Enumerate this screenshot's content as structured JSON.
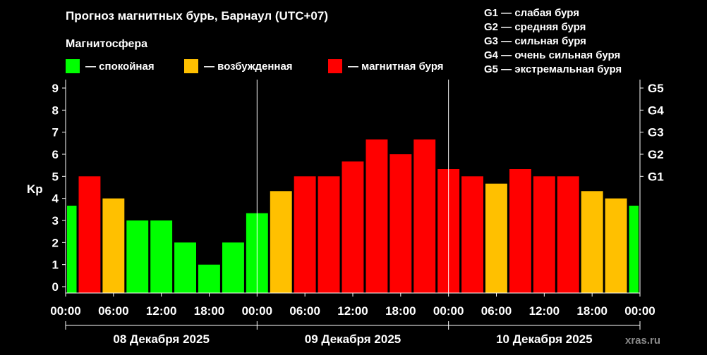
{
  "title": "Прогноз магнитных бурь, Барнаул (UTC+07)",
  "legend": {
    "heading": "Магнитосфера",
    "items": [
      {
        "label": "— спокойная",
        "color": "#00ff00"
      },
      {
        "label": "— возбужденная",
        "color": "#ffc000"
      },
      {
        "label": "— магнитная буря",
        "color": "#ff0000"
      }
    ]
  },
  "storm_scale": [
    "G1 — слабая буря",
    "G2 — средняя буря",
    "G3 — сильная буря",
    "G4 — очень сильная буря",
    "G5 — экстремальная буря"
  ],
  "watermark": "xras.ru",
  "chart_data": {
    "type": "bar",
    "ylabel": "Kp",
    "ylim": [
      0,
      9
    ],
    "yticks": [
      "0",
      "1",
      "2",
      "3",
      "4",
      "5",
      "6",
      "7",
      "8",
      "9"
    ],
    "right_ticks": [
      {
        "label": "G1",
        "kp": 5
      },
      {
        "label": "G2",
        "kp": 6
      },
      {
        "label": "G3",
        "kp": 7
      },
      {
        "label": "G4",
        "kp": 8
      },
      {
        "label": "G5",
        "kp": 9
      }
    ],
    "xticks": [
      "00:00",
      "06:00",
      "12:00",
      "18:00",
      "00:00",
      "06:00",
      "12:00",
      "18:00",
      "00:00",
      "06:00",
      "12:00",
      "18:00",
      "00:00"
    ],
    "days": [
      "08 Декабря 2025",
      "09 Декабря 2025",
      "10 Декабря 2025"
    ],
    "grid": false,
    "values": [
      3.67,
      5,
      4,
      3,
      3,
      2,
      1,
      2,
      3.33,
      4.33,
      5,
      5,
      5.67,
      6.67,
      6,
      6.67,
      5.33,
      5,
      4.67,
      5.33,
      5,
      5,
      4.33,
      4,
      3.67
    ],
    "colors": [
      "#00ff00",
      "#ff0000",
      "#ffc000",
      "#00ff00",
      "#00ff00",
      "#00ff00",
      "#00ff00",
      "#00ff00",
      "#00ff00",
      "#ffc000",
      "#ff0000",
      "#ff0000",
      "#ff0000",
      "#ff0000",
      "#ff0000",
      "#ff0000",
      "#ff0000",
      "#ff0000",
      "#ffc000",
      "#ff0000",
      "#ff0000",
      "#ff0000",
      "#ffc000",
      "#ffc000",
      "#00ff00"
    ]
  }
}
